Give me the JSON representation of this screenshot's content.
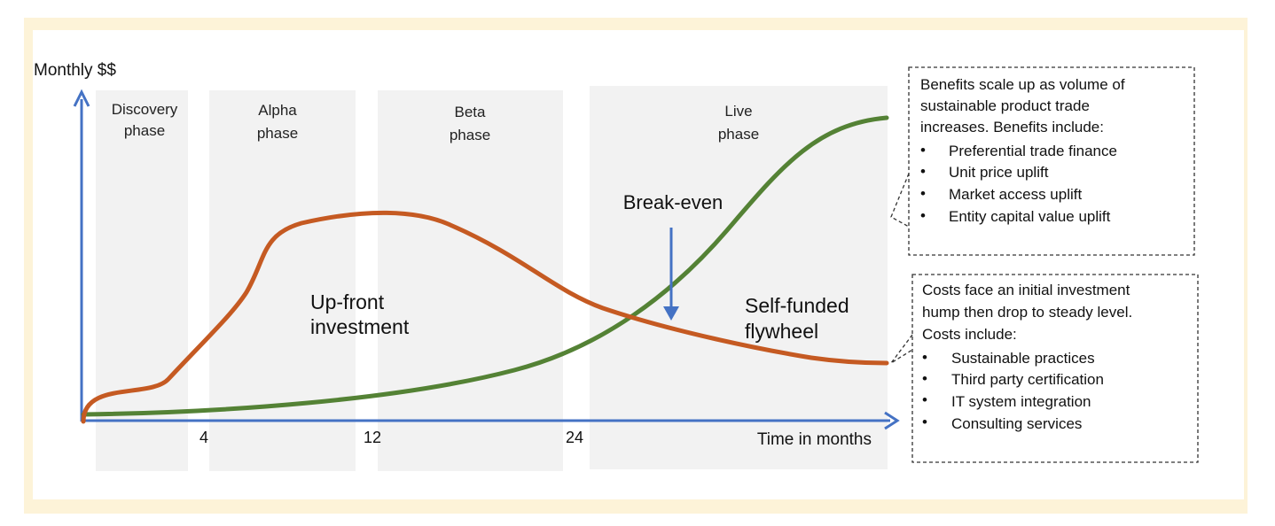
{
  "axis": {
    "y_label": "Monthly $$",
    "x_label": "Time in months",
    "ticks": [
      "4",
      "12",
      "24"
    ]
  },
  "phases": [
    {
      "line1": "Discovery",
      "line2": "phase"
    },
    {
      "line1": "Alpha",
      "line2": "phase"
    },
    {
      "line1": "Beta",
      "line2": "phase"
    },
    {
      "line1": "Live",
      "line2": "phase"
    }
  ],
  "labels": {
    "break_even": "Break-even",
    "investment_line1": "Up-front",
    "investment_line2": "investment",
    "flywheel_line1": "Self-funded",
    "flywheel_line2": "flywheel"
  },
  "benefits_box": {
    "lines": [
      "Benefits scale up as volume of",
      "sustainable product trade",
      "increases.  Benefits include:"
    ],
    "items": [
      "Preferential trade finance",
      "Unit price uplift",
      "Market access uplift",
      "Entity capital value uplift"
    ]
  },
  "costs_box": {
    "lines": [
      "Costs face an initial investment",
      "hump then drop to steady level.",
      "Costs include:"
    ],
    "items": [
      "Sustainable practices",
      "Third party certification",
      "IT system integration",
      "Consulting services"
    ]
  },
  "colors": {
    "axis": "#4472c4",
    "cost_curve": "#c55a22",
    "benefit_curve": "#548235",
    "phase_band": "#f2f2f2",
    "frame": "#fdf3d8"
  }
}
